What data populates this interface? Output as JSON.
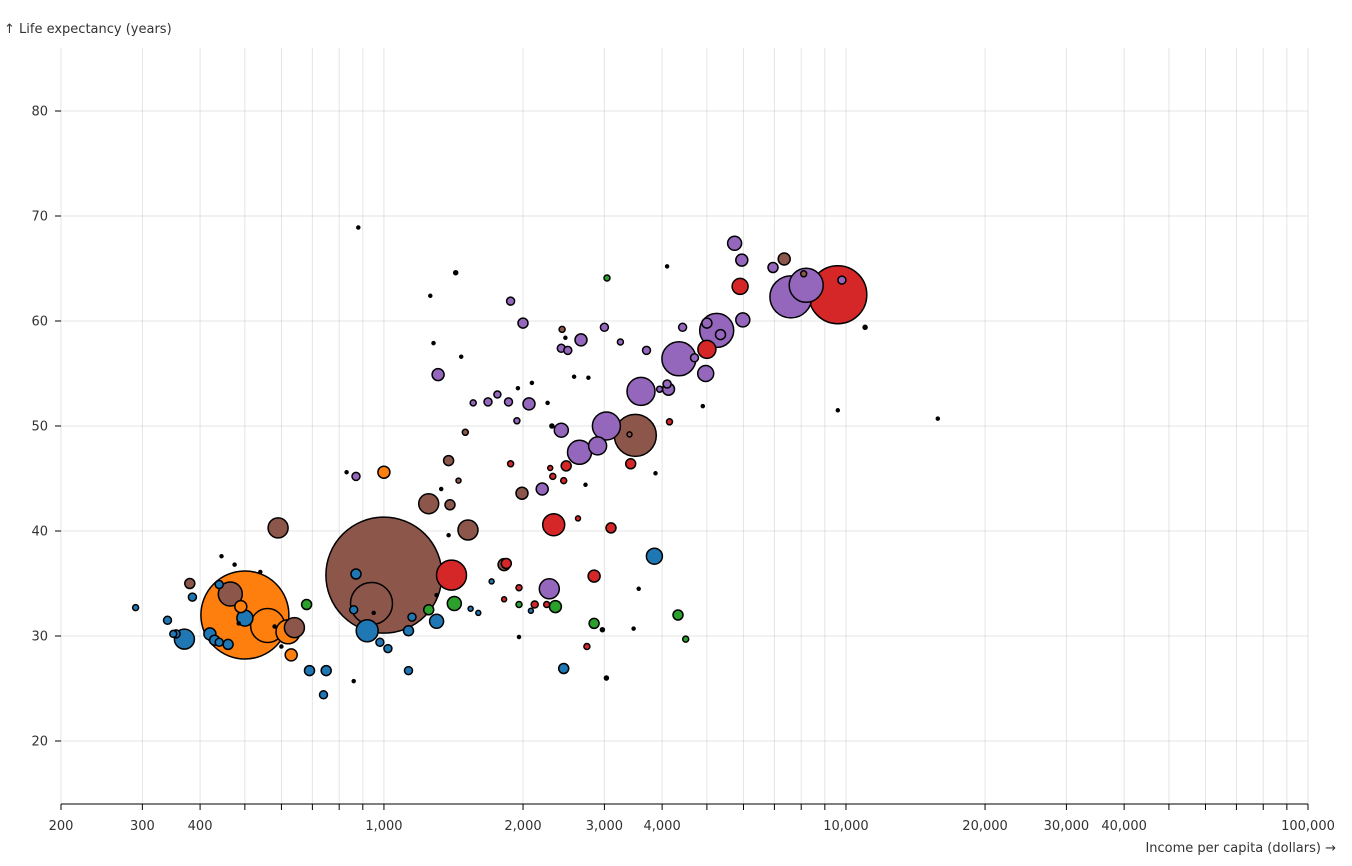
{
  "chart_data": {
    "type": "scatter",
    "xlabel": "Income per capita (dollars) →",
    "ylabel": "↑ Life expectancy (years)",
    "x_scale": "log",
    "xlim": [
      200,
      100000
    ],
    "ylim": [
      14,
      86
    ],
    "grid": true,
    "x_ticks": [
      200,
      300,
      400,
      500,
      600,
      700,
      800,
      900,
      1000,
      2000,
      3000,
      4000,
      5000,
      6000,
      7000,
      8000,
      9000,
      10000,
      20000,
      30000,
      40000,
      50000,
      60000,
      70000,
      80000,
      90000,
      100000
    ],
    "x_tick_labels": [
      "200",
      "300",
      "400",
      "",
      "",
      "",
      "",
      "",
      "1,000",
      "2,000",
      "3,000",
      "4,000",
      "",
      "",
      "",
      "",
      "",
      "10,000",
      "20,000",
      "30,000",
      "40,000",
      "",
      "",
      "",
      "",
      "",
      "100,000"
    ],
    "y_ticks": [
      20,
      30,
      40,
      50,
      60,
      70,
      80
    ],
    "y_tick_labels": [
      "20",
      "30",
      "40",
      "50",
      "60",
      "70",
      "80"
    ],
    "colors": {
      "blue": "#1f77b4",
      "orange": "#ff7f0e",
      "green": "#2ca02c",
      "red": "#d62728",
      "purple": "#9467bd",
      "brown": "#8c564b",
      "black": "#000000"
    },
    "points": [
      {
        "x": 1000,
        "y": 35.8,
        "size": 58,
        "color": "brown"
      },
      {
        "x": 500,
        "y": 32,
        "size": 44,
        "color": "orange"
      },
      {
        "x": 9600,
        "y": 62.5,
        "size": 29,
        "color": "red"
      },
      {
        "x": 7600,
        "y": 62.3,
        "size": 21,
        "color": "purple"
      },
      {
        "x": 8200,
        "y": 63.4,
        "size": 17,
        "color": "purple"
      },
      {
        "x": 3500,
        "y": 49.1,
        "size": 21,
        "color": "brown"
      },
      {
        "x": 940,
        "y": 33.1,
        "size": 21,
        "color": "brown"
      },
      {
        "x": 4350,
        "y": 56.4,
        "size": 17,
        "color": "purple"
      },
      {
        "x": 5250,
        "y": 59.1,
        "size": 17,
        "color": "purple"
      },
      {
        "x": 560,
        "y": 31,
        "size": 17,
        "color": "orange"
      },
      {
        "x": 3600,
        "y": 53.3,
        "size": 14,
        "color": "purple"
      },
      {
        "x": 3030,
        "y": 50,
        "size": 14,
        "color": "purple"
      },
      {
        "x": 2650,
        "y": 47.5,
        "size": 12,
        "color": "purple"
      },
      {
        "x": 1400,
        "y": 35.8,
        "size": 15,
        "color": "red"
      },
      {
        "x": 465,
        "y": 34,
        "size": 12,
        "color": "brown"
      },
      {
        "x": 620,
        "y": 30.4,
        "size": 12,
        "color": "orange"
      },
      {
        "x": 640,
        "y": 30.8,
        "size": 10,
        "color": "brown"
      },
      {
        "x": 370,
        "y": 29.7,
        "size": 10,
        "color": "blue"
      },
      {
        "x": 920,
        "y": 30.5,
        "size": 11,
        "color": "blue"
      },
      {
        "x": 2330,
        "y": 40.6,
        "size": 11,
        "color": "red"
      },
      {
        "x": 2280,
        "y": 34.5,
        "size": 10,
        "color": "purple"
      },
      {
        "x": 1250,
        "y": 42.6,
        "size": 10,
        "color": "brown"
      },
      {
        "x": 1520,
        "y": 40.1,
        "size": 10,
        "color": "brown"
      },
      {
        "x": 590,
        "y": 40.3,
        "size": 10,
        "color": "brown"
      },
      {
        "x": 2900,
        "y": 48.1,
        "size": 9,
        "color": "purple"
      },
      {
        "x": 5900,
        "y": 63.3,
        "size": 8,
        "color": "red"
      },
      {
        "x": 5000,
        "y": 57.3,
        "size": 9,
        "color": "red"
      },
      {
        "x": 4970,
        "y": 55,
        "size": 8,
        "color": "purple"
      },
      {
        "x": 3850,
        "y": 37.6,
        "size": 8,
        "color": "blue"
      },
      {
        "x": 1300,
        "y": 31.4,
        "size": 7,
        "color": "blue"
      },
      {
        "x": 500,
        "y": 31.7,
        "size": 8,
        "color": "blue"
      },
      {
        "x": 1420,
        "y": 33.1,
        "size": 7,
        "color": "green"
      },
      {
        "x": 2420,
        "y": 49.6,
        "size": 7,
        "color": "purple"
      },
      {
        "x": 2060,
        "y": 52.1,
        "size": 6,
        "color": "purple"
      },
      {
        "x": 1820,
        "y": 36.8,
        "size": 6,
        "color": "brown"
      },
      {
        "x": 1310,
        "y": 54.9,
        "size": 6,
        "color": "purple"
      },
      {
        "x": 5740,
        "y": 67.4,
        "size": 7,
        "color": "purple"
      },
      {
        "x": 5980,
        "y": 60.1,
        "size": 7,
        "color": "purple"
      },
      {
        "x": 5950,
        "y": 65.8,
        "size": 6,
        "color": "purple"
      },
      {
        "x": 7350,
        "y": 65.9,
        "size": 6,
        "color": "brown"
      },
      {
        "x": 2480,
        "y": 46.2,
        "size": 5,
        "color": "red"
      },
      {
        "x": 1840,
        "y": 36.9,
        "size": 5,
        "color": "red"
      },
      {
        "x": 6950,
        "y": 65.1,
        "size": 5,
        "color": "purple"
      },
      {
        "x": 5000,
        "y": 59.8,
        "size": 5,
        "color": "purple"
      },
      {
        "x": 5350,
        "y": 58.7,
        "size": 5,
        "color": "purple"
      },
      {
        "x": 4130,
        "y": 53.5,
        "size": 6,
        "color": "purple"
      },
      {
        "x": 1380,
        "y": 46.7,
        "size": 5,
        "color": "brown"
      },
      {
        "x": 1390,
        "y": 42.5,
        "size": 5,
        "color": "brown"
      },
      {
        "x": 1990,
        "y": 43.6,
        "size": 6,
        "color": "brown"
      },
      {
        "x": 2670,
        "y": 58.2,
        "size": 6,
        "color": "purple"
      },
      {
        "x": 2200,
        "y": 44,
        "size": 6,
        "color": "purple"
      },
      {
        "x": 1000,
        "y": 45.6,
        "size": 6,
        "color": "orange"
      },
      {
        "x": 490,
        "y": 32.8,
        "size": 6,
        "color": "orange"
      },
      {
        "x": 630,
        "y": 28.2,
        "size": 6,
        "color": "orange"
      },
      {
        "x": 680,
        "y": 33,
        "size": 5,
        "color": "green"
      },
      {
        "x": 2350,
        "y": 32.8,
        "size": 6,
        "color": "green"
      },
      {
        "x": 2850,
        "y": 31.2,
        "size": 5,
        "color": "green"
      },
      {
        "x": 4330,
        "y": 32,
        "size": 5,
        "color": "green"
      },
      {
        "x": 1250,
        "y": 32.5,
        "size": 5,
        "color": "green"
      },
      {
        "x": 2850,
        "y": 35.7,
        "size": 6,
        "color": "red"
      },
      {
        "x": 3100,
        "y": 40.3,
        "size": 5,
        "color": "red"
      },
      {
        "x": 3420,
        "y": 46.4,
        "size": 5,
        "color": "red"
      },
      {
        "x": 870,
        "y": 35.9,
        "size": 5,
        "color": "blue"
      },
      {
        "x": 1130,
        "y": 30.5,
        "size": 5,
        "color": "blue"
      },
      {
        "x": 860,
        "y": 32.5,
        "size": 4,
        "color": "blue"
      },
      {
        "x": 380,
        "y": 35,
        "size": 5,
        "color": "brown"
      },
      {
        "x": 420,
        "y": 30.2,
        "size": 6,
        "color": "blue"
      },
      {
        "x": 430,
        "y": 29.6,
        "size": 5,
        "color": "blue"
      },
      {
        "x": 440,
        "y": 29.4,
        "size": 4,
        "color": "blue"
      },
      {
        "x": 460,
        "y": 29.2,
        "size": 5,
        "color": "blue"
      },
      {
        "x": 440,
        "y": 34.9,
        "size": 4,
        "color": "blue"
      },
      {
        "x": 385,
        "y": 33.7,
        "size": 4,
        "color": "blue"
      },
      {
        "x": 340,
        "y": 31.5,
        "size": 4,
        "color": "blue"
      },
      {
        "x": 350,
        "y": 30.2,
        "size": 3.5,
        "color": "blue"
      },
      {
        "x": 355,
        "y": 30.2,
        "size": 4,
        "color": "blue"
      },
      {
        "x": 690,
        "y": 26.7,
        "size": 5,
        "color": "blue"
      },
      {
        "x": 750,
        "y": 26.7,
        "size": 5,
        "color": "blue"
      },
      {
        "x": 1130,
        "y": 26.7,
        "size": 4,
        "color": "blue"
      },
      {
        "x": 2450,
        "y": 26.9,
        "size": 5,
        "color": "blue"
      },
      {
        "x": 740,
        "y": 24.4,
        "size": 4,
        "color": "blue"
      },
      {
        "x": 1020,
        "y": 28.8,
        "size": 4,
        "color": "blue"
      },
      {
        "x": 980,
        "y": 29.4,
        "size": 4,
        "color": "blue"
      },
      {
        "x": 1150,
        "y": 31.8,
        "size": 4,
        "color": "blue"
      },
      {
        "x": 290,
        "y": 32.7,
        "size": 3,
        "color": "blue"
      },
      {
        "x": 3250,
        "y": 58,
        "size": 3,
        "color": "purple"
      },
      {
        "x": 3700,
        "y": 57.2,
        "size": 4,
        "color": "purple"
      },
      {
        "x": 2420,
        "y": 57.4,
        "size": 4,
        "color": "purple"
      },
      {
        "x": 2500,
        "y": 57.2,
        "size": 4,
        "color": "purple"
      },
      {
        "x": 3000,
        "y": 59.4,
        "size": 4,
        "color": "purple"
      },
      {
        "x": 2000,
        "y": 59.8,
        "size": 5,
        "color": "purple"
      },
      {
        "x": 1880,
        "y": 61.9,
        "size": 4,
        "color": "purple"
      },
      {
        "x": 4430,
        "y": 59.4,
        "size": 4,
        "color": "purple"
      },
      {
        "x": 4700,
        "y": 56.5,
        "size": 4,
        "color": "purple"
      },
      {
        "x": 3950,
        "y": 53.5,
        "size": 3,
        "color": "purple"
      },
      {
        "x": 4100,
        "y": 54,
        "size": 4,
        "color": "purple"
      },
      {
        "x": 1680,
        "y": 52.3,
        "size": 4,
        "color": "purple"
      },
      {
        "x": 1760,
        "y": 53,
        "size": 3.5,
        "color": "purple"
      },
      {
        "x": 1860,
        "y": 52.3,
        "size": 4,
        "color": "purple"
      },
      {
        "x": 1940,
        "y": 50.5,
        "size": 3,
        "color": "purple"
      },
      {
        "x": 1560,
        "y": 52.2,
        "size": 3,
        "color": "purple"
      },
      {
        "x": 870,
        "y": 45.2,
        "size": 4,
        "color": "purple"
      },
      {
        "x": 2430,
        "y": 59.2,
        "size": 3,
        "color": "brown"
      },
      {
        "x": 8100,
        "y": 64.5,
        "size": 3,
        "color": "brown"
      },
      {
        "x": 3400,
        "y": 49.2,
        "size": 2.5,
        "color": "brown"
      },
      {
        "x": 1500,
        "y": 49.4,
        "size": 3,
        "color": "brown"
      },
      {
        "x": 1450,
        "y": 44.8,
        "size": 2.5,
        "color": "brown"
      },
      {
        "x": 9800,
        "y": 63.9,
        "size": 4,
        "color": "purple"
      },
      {
        "x": 2320,
        "y": 45.2,
        "size": 3,
        "color": "red"
      },
      {
        "x": 2450,
        "y": 44.8,
        "size": 3,
        "color": "red"
      },
      {
        "x": 2290,
        "y": 46,
        "size": 2.5,
        "color": "red"
      },
      {
        "x": 4150,
        "y": 50.4,
        "size": 3,
        "color": "red"
      },
      {
        "x": 1880,
        "y": 46.4,
        "size": 3,
        "color": "red"
      },
      {
        "x": 2120,
        "y": 33,
        "size": 3.5,
        "color": "red"
      },
      {
        "x": 2750,
        "y": 29,
        "size": 3,
        "color": "red"
      },
      {
        "x": 1960,
        "y": 34.6,
        "size": 3,
        "color": "red"
      },
      {
        "x": 1820,
        "y": 33.5,
        "size": 2.5,
        "color": "red"
      },
      {
        "x": 2630,
        "y": 41.2,
        "size": 2.5,
        "color": "red"
      },
      {
        "x": 2250,
        "y": 33,
        "size": 3,
        "color": "red"
      },
      {
        "x": 3040,
        "y": 64.1,
        "size": 3,
        "color": "green"
      },
      {
        "x": 4500,
        "y": 29.7,
        "size": 3,
        "color": "green"
      },
      {
        "x": 1960,
        "y": 33,
        "size": 3,
        "color": "green"
      },
      {
        "x": 1600,
        "y": 32.2,
        "size": 2.5,
        "color": "blue"
      },
      {
        "x": 1540,
        "y": 32.6,
        "size": 2.5,
        "color": "blue"
      },
      {
        "x": 1710,
        "y": 35.2,
        "size": 2.5,
        "color": "blue"
      },
      {
        "x": 2080,
        "y": 32.4,
        "size": 2.5,
        "color": "blue"
      },
      {
        "x": 880,
        "y": 68.9,
        "size": 1.5,
        "color": "black"
      },
      {
        "x": 1430,
        "y": 64.6,
        "size": 2,
        "color": "black"
      },
      {
        "x": 1260,
        "y": 62.4,
        "size": 1.5,
        "color": "black"
      },
      {
        "x": 4100,
        "y": 65.2,
        "size": 1.5,
        "color": "black"
      },
      {
        "x": 11000,
        "y": 59.4,
        "size": 2,
        "color": "black"
      },
      {
        "x": 15800,
        "y": 50.7,
        "size": 1.5,
        "color": "black"
      },
      {
        "x": 9600,
        "y": 51.5,
        "size": 1.5,
        "color": "black"
      },
      {
        "x": 4900,
        "y": 51.9,
        "size": 1.5,
        "color": "black"
      },
      {
        "x": 3870,
        "y": 45.5,
        "size": 1.5,
        "color": "black"
      },
      {
        "x": 2090,
        "y": 54.1,
        "size": 1.5,
        "color": "black"
      },
      {
        "x": 2580,
        "y": 54.7,
        "size": 1.5,
        "color": "black"
      },
      {
        "x": 2770,
        "y": 54.6,
        "size": 1.5,
        "color": "black"
      },
      {
        "x": 1950,
        "y": 53.6,
        "size": 1.5,
        "color": "black"
      },
      {
        "x": 3560,
        "y": 34.5,
        "size": 1.5,
        "color": "black"
      },
      {
        "x": 3470,
        "y": 30.7,
        "size": 1.5,
        "color": "black"
      },
      {
        "x": 3030,
        "y": 26,
        "size": 2,
        "color": "black"
      },
      {
        "x": 2970,
        "y": 30.6,
        "size": 2,
        "color": "black"
      },
      {
        "x": 1960,
        "y": 29.9,
        "size": 1.5,
        "color": "black"
      },
      {
        "x": 860,
        "y": 25.7,
        "size": 1.5,
        "color": "black"
      },
      {
        "x": 540,
        "y": 36.1,
        "size": 1.5,
        "color": "black"
      },
      {
        "x": 475,
        "y": 36.8,
        "size": 1.5,
        "color": "black"
      },
      {
        "x": 445,
        "y": 37.6,
        "size": 1.5,
        "color": "black"
      },
      {
        "x": 830,
        "y": 45.6,
        "size": 1.5,
        "color": "black"
      },
      {
        "x": 1470,
        "y": 56.6,
        "size": 1.5,
        "color": "black"
      },
      {
        "x": 1280,
        "y": 57.9,
        "size": 1.5,
        "color": "black"
      },
      {
        "x": 2470,
        "y": 58.4,
        "size": 1.5,
        "color": "black"
      },
      {
        "x": 2260,
        "y": 52.2,
        "size": 1.5,
        "color": "black"
      },
      {
        "x": 2310,
        "y": 50,
        "size": 2,
        "color": "black"
      },
      {
        "x": 2730,
        "y": 44.4,
        "size": 1.5,
        "color": "black"
      },
      {
        "x": 1330,
        "y": 44,
        "size": 1.5,
        "color": "black"
      },
      {
        "x": 1380,
        "y": 39.6,
        "size": 1.5,
        "color": "black"
      },
      {
        "x": 1300,
        "y": 33.9,
        "size": 1.5,
        "color": "black"
      },
      {
        "x": 950,
        "y": 32.2,
        "size": 1.5,
        "color": "black"
      },
      {
        "x": 600,
        "y": 29,
        "size": 1.5,
        "color": "black"
      },
      {
        "x": 485,
        "y": 31.2,
        "size": 1.5,
        "color": "black"
      },
      {
        "x": 580,
        "y": 30.9,
        "size": 1.5,
        "color": "black"
      }
    ]
  }
}
